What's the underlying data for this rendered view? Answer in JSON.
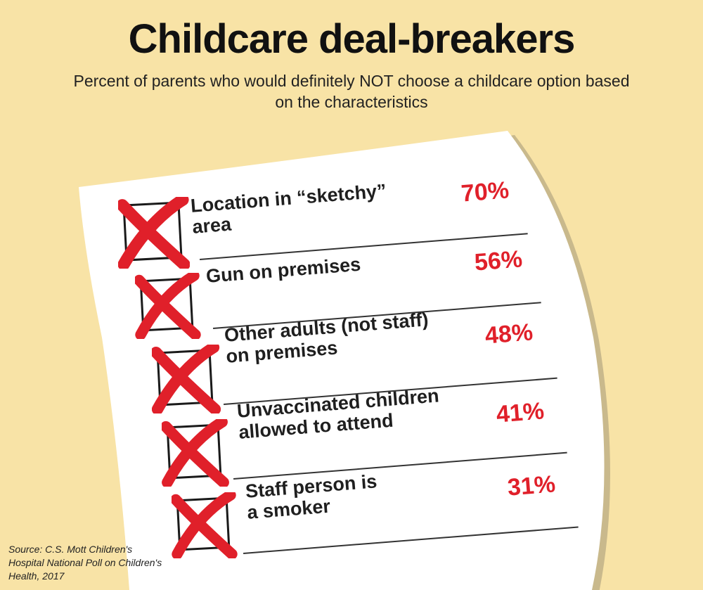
{
  "title": "Childcare deal-breakers",
  "subtitle": "Percent of parents who would definitely NOT choose a childcare option based on the characteristics",
  "source": "Source: C.S. Mott Children's Hospital National Poll on Children's Health, 2017",
  "colors": {
    "background": "#f8e3a6",
    "paper": "#ffffff",
    "value": "#e0202a",
    "cross": "#e0202a"
  },
  "chart_data": {
    "type": "table",
    "categories": [
      "Location in “sketchy”\narea",
      "Gun on premises",
      "Other adults (not staff)\non premises",
      "Unvaccinated children\nallowed to attend",
      "Staff person is\na smoker"
    ],
    "values": [
      70,
      56,
      48,
      41,
      31
    ],
    "value_labels": [
      "70%",
      "56%",
      "48%",
      "41%",
      "31%"
    ]
  }
}
